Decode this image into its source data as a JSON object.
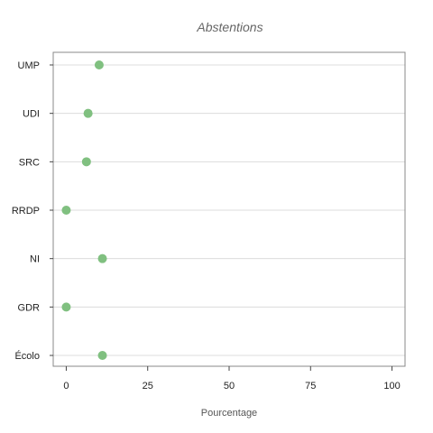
{
  "chart_data": {
    "type": "scatter",
    "orientation": "horizontal-dot",
    "title": "Abstentions",
    "xlabel": "Pourcentage",
    "ylabel": "",
    "xlim": [
      -4,
      104
    ],
    "xticks": [
      0,
      25,
      50,
      75,
      100
    ],
    "grid": "horizontal",
    "point_color": "#80c080",
    "categories": [
      "UMP",
      "UDI",
      "SRC",
      "RRDP",
      "NI",
      "GDR",
      "Écolo"
    ],
    "values": [
      10.1,
      6.7,
      6.2,
      0,
      11.1,
      0,
      11.1
    ]
  }
}
